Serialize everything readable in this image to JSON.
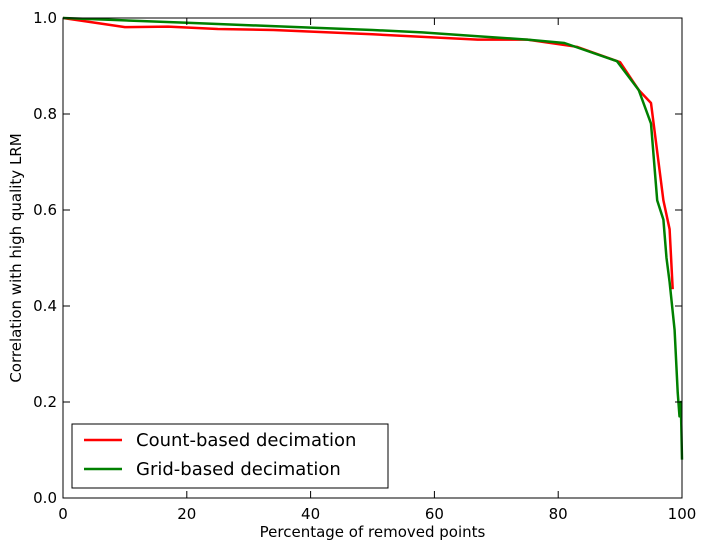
{
  "chart_data": {
    "type": "line",
    "xlabel": "Percentage of removed points",
    "ylabel": "Correlation with high quality LRM",
    "xlim": [
      0,
      100
    ],
    "ylim": [
      0,
      1
    ],
    "xticks": [
      0,
      20,
      40,
      60,
      80,
      100
    ],
    "xtick_labels": [
      "0",
      "20",
      "40",
      "60",
      "80",
      "100"
    ],
    "yticks": [
      0.0,
      0.2,
      0.4,
      0.6,
      0.8,
      1.0
    ],
    "ytick_labels": [
      "0.0",
      "0.2",
      "0.4",
      "0.6",
      "0.8",
      "1.0"
    ],
    "grid": false,
    "legend_position": "lower-left",
    "series": [
      {
        "name": "Count-based decimation",
        "color": "#ff0000",
        "x": [
          0,
          10,
          17,
          25,
          34,
          50,
          67,
          75,
          83,
          90,
          93,
          95,
          97,
          98,
          98.5
        ],
        "y": [
          1.0,
          0.981,
          0.982,
          0.977,
          0.975,
          0.966,
          0.955,
          0.955,
          0.94,
          0.908,
          0.85,
          0.823,
          0.62,
          0.56,
          0.435
        ]
      },
      {
        "name": "Grid-based decimation",
        "color": "#008000",
        "x": [
          0,
          10,
          20,
          30,
          40,
          50,
          58,
          67,
          75,
          81,
          89.5,
          93,
          95,
          96,
          97,
          97.5,
          98,
          98.8,
          99.3,
          99.6,
          99.8,
          100
        ],
        "y": [
          1.0,
          0.995,
          0.99,
          0.985,
          0.98,
          0.975,
          0.97,
          0.962,
          0.955,
          0.948,
          0.91,
          0.85,
          0.78,
          0.62,
          0.58,
          0.5,
          0.45,
          0.35,
          0.22,
          0.17,
          0.2,
          0.08
        ]
      }
    ]
  }
}
